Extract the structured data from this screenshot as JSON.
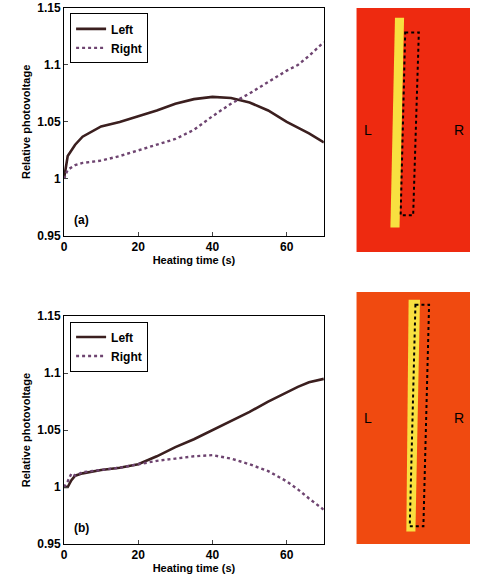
{
  "chart_data": [
    {
      "type": "line",
      "panel_label": "(a)",
      "x_label": "Heating time (s)",
      "y_label": "Relative photovoltage",
      "x": [
        0,
        1,
        3,
        5,
        10,
        15,
        20,
        25,
        30,
        35,
        40,
        45,
        50,
        55,
        60,
        63,
        66,
        70
      ],
      "series": [
        {
          "name": "Left",
          "color": "#3b1f1f",
          "line_style": "solid",
          "values": [
            1.0,
            1.02,
            1.03,
            1.037,
            1.046,
            1.05,
            1.055,
            1.06,
            1.066,
            1.07,
            1.072,
            1.071,
            1.067,
            1.06,
            1.05,
            1.045,
            1.04,
            1.032
          ]
        },
        {
          "name": "Right",
          "color": "#6e4470",
          "line_style": "dot",
          "values": [
            1.0,
            1.008,
            1.012,
            1.014,
            1.016,
            1.02,
            1.025,
            1.03,
            1.035,
            1.043,
            1.055,
            1.066,
            1.075,
            1.085,
            1.095,
            1.1,
            1.108,
            1.12
          ]
        }
      ],
      "xlim": [
        0,
        70
      ],
      "xticks": [
        0,
        20,
        40,
        60
      ],
      "ylim": [
        0.95,
        1.15
      ],
      "yticks": [
        0.95,
        1,
        1.05,
        1.1,
        1.15
      ],
      "legend": "upper left",
      "grid": false,
      "image_annotations": [
        "L",
        "R"
      ]
    },
    {
      "type": "line",
      "panel_label": "(b)",
      "x_label": "Heating time (s)",
      "y_label": "Relative photovoltage",
      "x": [
        0,
        1,
        2,
        3,
        5,
        10,
        15,
        20,
        25,
        30,
        35,
        40,
        45,
        50,
        55,
        60,
        63,
        66,
        70
      ],
      "series": [
        {
          "name": "Left",
          "color": "#3b1f1f",
          "line_style": "solid",
          "values": [
            1.0,
            1.0,
            1.006,
            1.01,
            1.012,
            1.015,
            1.017,
            1.02,
            1.027,
            1.035,
            1.042,
            1.05,
            1.058,
            1.066,
            1.075,
            1.083,
            1.088,
            1.092,
            1.095
          ]
        },
        {
          "name": "Right",
          "color": "#6e4470",
          "line_style": "dot",
          "values": [
            1.0,
            1.005,
            1.012,
            1.01,
            1.013,
            1.015,
            1.017,
            1.02,
            1.023,
            1.025,
            1.027,
            1.028,
            1.025,
            1.02,
            1.014,
            1.005,
            0.998,
            0.99,
            0.98
          ]
        }
      ],
      "xlim": [
        0,
        70
      ],
      "xticks": [
        0,
        20,
        40,
        60
      ],
      "ylim": [
        0.95,
        1.15
      ],
      "yticks": [
        0.95,
        1,
        1.05,
        1.1,
        1.15
      ],
      "legend": "upper left",
      "grid": false,
      "image_annotations": [
        "L",
        "R"
      ]
    }
  ]
}
